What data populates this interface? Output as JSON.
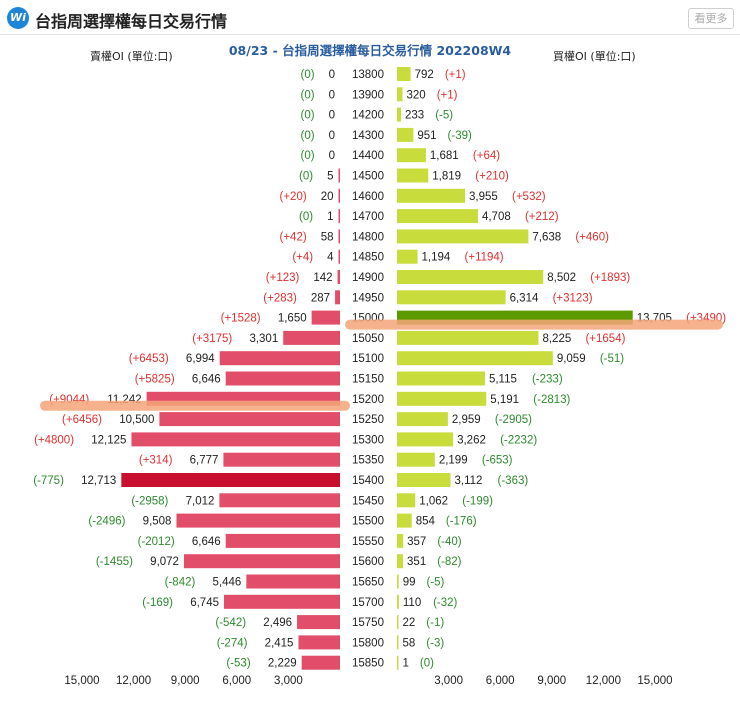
{
  "header": {
    "logo_text": "Wi",
    "title": "台指周選擇權每日交易行情",
    "more_label": "看更多"
  },
  "colors": {
    "put_bar": "#e24e6a",
    "put_bar_highlight": "#c8102e",
    "call_bar": "#c8dc3c",
    "call_bar_highlight": "#5d9a00",
    "increase_text": "#e03030",
    "decrease_text": "#2e8b2e",
    "marker": "#f4a57a"
  },
  "chart_data": {
    "type": "bar",
    "title": "08/23 - 台指周選擇權每日交易行情 202208W4",
    "left_label": "賣權OI (單位:口)",
    "right_label": "買權OI (單位:口)",
    "left_axis_ticks": [
      "15,000",
      "12,000",
      "9,000",
      "6,000",
      "3,000"
    ],
    "right_axis_ticks": [
      "3,000",
      "6,000",
      "9,000",
      "12,000",
      "15,000"
    ],
    "xlim": [
      0,
      15000
    ],
    "rows": [
      {
        "strike": "13800",
        "put_oi": 0,
        "put_chg": "(0)",
        "call_oi": 792,
        "call_chg": "(+1)"
      },
      {
        "strike": "13900",
        "put_oi": 0,
        "put_chg": "(0)",
        "call_oi": 320,
        "call_chg": "(+1)"
      },
      {
        "strike": "14200",
        "put_oi": 0,
        "put_chg": "(0)",
        "call_oi": 233,
        "call_chg": "(-5)"
      },
      {
        "strike": "14300",
        "put_oi": 0,
        "put_chg": "(0)",
        "call_oi": 951,
        "call_chg": "(-39)"
      },
      {
        "strike": "14400",
        "put_oi": 0,
        "put_chg": "(0)",
        "call_oi": 1681,
        "call_chg": "(+64)"
      },
      {
        "strike": "14500",
        "put_oi": 5,
        "put_chg": "(0)",
        "call_oi": 1819,
        "call_chg": "(+210)"
      },
      {
        "strike": "14600",
        "put_oi": 20,
        "put_chg": "(+20)",
        "call_oi": 3955,
        "call_chg": "(+532)"
      },
      {
        "strike": "14700",
        "put_oi": 1,
        "put_chg": "(0)",
        "call_oi": 4708,
        "call_chg": "(+212)"
      },
      {
        "strike": "14800",
        "put_oi": 58,
        "put_chg": "(+42)",
        "call_oi": 7638,
        "call_chg": "(+460)"
      },
      {
        "strike": "14850",
        "put_oi": 4,
        "put_chg": "(+4)",
        "call_oi": 1194,
        "call_chg": "(+1194)"
      },
      {
        "strike": "14900",
        "put_oi": 142,
        "put_chg": "(+123)",
        "call_oi": 8502,
        "call_chg": "(+1893)"
      },
      {
        "strike": "14950",
        "put_oi": 287,
        "put_chg": "(+283)",
        "call_oi": 6314,
        "call_chg": "(+3123)"
      },
      {
        "strike": "15000",
        "put_oi": 1650,
        "put_chg": "(+1528)",
        "call_oi": 13705,
        "call_chg": "(+3490)",
        "call_highlight": true
      },
      {
        "strike": "15050",
        "put_oi": 3301,
        "put_chg": "(+3175)",
        "call_oi": 8225,
        "call_chg": "(+1654)"
      },
      {
        "strike": "15100",
        "put_oi": 6994,
        "put_chg": "(+6453)",
        "call_oi": 9059,
        "call_chg": "(-51)"
      },
      {
        "strike": "15150",
        "put_oi": 6646,
        "put_chg": "(+5825)",
        "call_oi": 5115,
        "call_chg": "(-233)"
      },
      {
        "strike": "15200",
        "put_oi": 11242,
        "put_chg": "(+9044)",
        "call_oi": 5191,
        "call_chg": "(-2813)"
      },
      {
        "strike": "15250",
        "put_oi": 10500,
        "put_chg": "(+6456)",
        "call_oi": 2959,
        "call_chg": "(-2905)"
      },
      {
        "strike": "15300",
        "put_oi": 12125,
        "put_chg": "(+4800)",
        "call_oi": 3262,
        "call_chg": "(-2232)"
      },
      {
        "strike": "15350",
        "put_oi": 6777,
        "put_chg": "(+314)",
        "call_oi": 2199,
        "call_chg": "(-653)"
      },
      {
        "strike": "15400",
        "put_oi": 12713,
        "put_chg": "(-775)",
        "call_oi": 3112,
        "call_chg": "(-363)",
        "put_highlight": true
      },
      {
        "strike": "15450",
        "put_oi": 7012,
        "put_chg": "(-2958)",
        "call_oi": 1062,
        "call_chg": "(-199)"
      },
      {
        "strike": "15500",
        "put_oi": 9508,
        "put_chg": "(-2496)",
        "call_oi": 854,
        "call_chg": "(-176)"
      },
      {
        "strike": "15550",
        "put_oi": 6646,
        "put_chg": "(-2012)",
        "call_oi": 357,
        "call_chg": "(-40)"
      },
      {
        "strike": "15600",
        "put_oi": 9072,
        "put_chg": "(-1455)",
        "call_oi": 351,
        "call_chg": "(-82)"
      },
      {
        "strike": "15650",
        "put_oi": 5446,
        "put_chg": "(-842)",
        "call_oi": 99,
        "call_chg": "(-5)"
      },
      {
        "strike": "15700",
        "put_oi": 6745,
        "put_chg": "(-169)",
        "call_oi": 110,
        "call_chg": "(-32)"
      },
      {
        "strike": "15750",
        "put_oi": 2496,
        "put_chg": "(-542)",
        "call_oi": 22,
        "call_chg": "(-1)"
      },
      {
        "strike": "15800",
        "put_oi": 2415,
        "put_chg": "(-274)",
        "call_oi": 58,
        "call_chg": "(-3)"
      },
      {
        "strike": "15850",
        "put_oi": 2229,
        "put_chg": "(-53)",
        "call_oi": 1,
        "call_chg": "(0)"
      }
    ],
    "markers": [
      {
        "side": "call",
        "strike": "15000"
      },
      {
        "side": "put",
        "strike": "15200"
      }
    ]
  }
}
